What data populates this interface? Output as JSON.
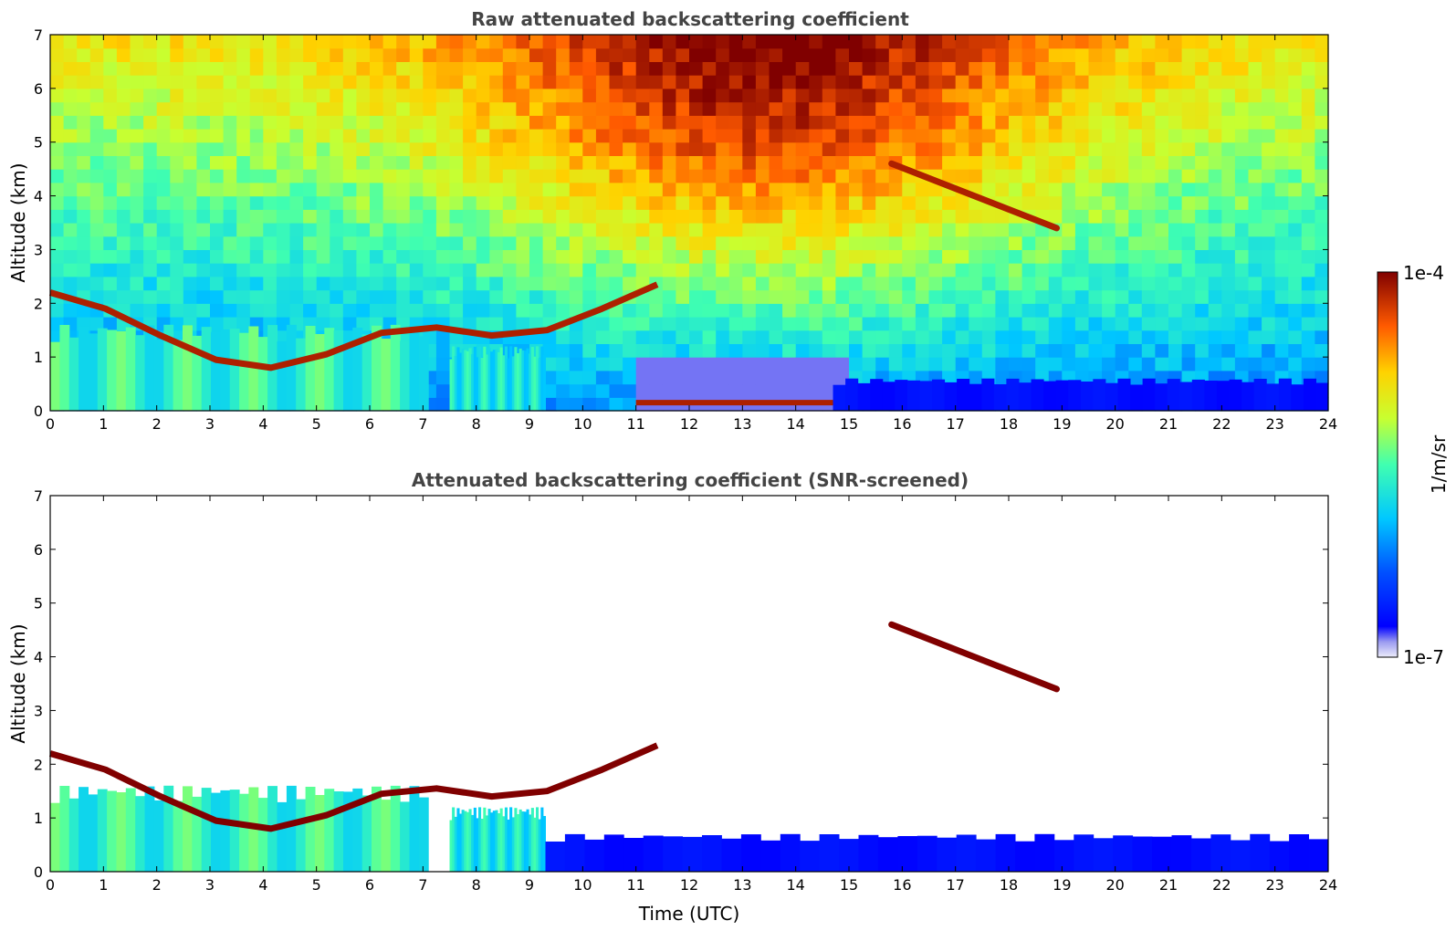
{
  "chart_data": [
    {
      "type": "heatmap",
      "title": "Raw attenuated backscattering coefficient",
      "xlabel": "",
      "ylabel": "Altitude (km)",
      "xlim": [
        0,
        24
      ],
      "ylim": [
        0,
        7
      ],
      "xticks": [
        "0",
        "1",
        "2",
        "3",
        "4",
        "5",
        "6",
        "7",
        "8",
        "9",
        "10",
        "11",
        "12",
        "13",
        "14",
        "15",
        "16",
        "17",
        "18",
        "19",
        "20",
        "21",
        "22",
        "23",
        "24"
      ],
      "yticks": [
        "0",
        "1",
        "2",
        "3",
        "4",
        "5",
        "6",
        "7"
      ],
      "background": "noise",
      "features": [
        {
          "label": "boundary layer aerosol",
          "x_start": 0,
          "x_end": 7.1,
          "top_km": 1.6,
          "level": 0.55
        },
        {
          "label": "boundary layer aerosol",
          "x_start": 7.5,
          "x_end": 9.3,
          "top_km": 1.2,
          "level": 0.5
        },
        {
          "label": "cloud layer (0-2.4 km)",
          "x_start": 0,
          "x_end": 11.4,
          "altitude_km": [
            2.2,
            1.9,
            1.4,
            0.95,
            0.8,
            1.05,
            1.45,
            1.55,
            1.4,
            1.5,
            1.9,
            2.35
          ],
          "level": 0.95
        },
        {
          "label": "low cloud",
          "x_start": 11,
          "x_end": 14.7,
          "altitude_km": 0.15,
          "level": 0.95
        },
        {
          "label": "elevated layer",
          "x_start": 15.8,
          "x_end": 18.9,
          "altitude_km_start": 4.6,
          "altitude_km_end": 3.4,
          "level": 0.95
        },
        {
          "label": "surface layer",
          "x_start": 14.7,
          "x_end": 24,
          "top_km": 0.6,
          "level": 0.12
        }
      ]
    },
    {
      "type": "heatmap",
      "title": "Attenuated backscattering coefficient (SNR-screened)",
      "xlabel": "Time (UTC)",
      "ylabel": "Altitude (km)",
      "xlim": [
        0,
        24
      ],
      "ylim": [
        0,
        7
      ],
      "xticks": [
        "0",
        "1",
        "2",
        "3",
        "4",
        "5",
        "6",
        "7",
        "8",
        "9",
        "10",
        "11",
        "12",
        "13",
        "14",
        "15",
        "16",
        "17",
        "18",
        "19",
        "20",
        "21",
        "22",
        "23",
        "24"
      ],
      "yticks": [
        "0",
        "1",
        "2",
        "3",
        "4",
        "5",
        "6",
        "7"
      ],
      "background": "screened",
      "features": [
        {
          "label": "boundary layer aerosol",
          "x_start": 0,
          "x_end": 7.1,
          "top_km": 1.6,
          "level": 0.55
        },
        {
          "label": "boundary layer aerosol",
          "x_start": 7.5,
          "x_end": 9.3,
          "top_km": 1.2,
          "level": 0.5
        },
        {
          "label": "cloud layer (0-2.4 km)",
          "x_start": 0,
          "x_end": 11.4,
          "altitude_km": [
            2.2,
            1.9,
            1.4,
            0.95,
            0.8,
            1.05,
            1.45,
            1.55,
            1.4,
            1.5,
            1.9,
            2.35
          ],
          "level": 1.0
        },
        {
          "label": "low cloud",
          "x_start": 11,
          "x_end": 14.7,
          "altitude_km": 0.15,
          "level": 1.0
        },
        {
          "label": "elevated layer",
          "x_start": 15.8,
          "x_end": 18.9,
          "altitude_km_start": 4.6,
          "altitude_km_end": 3.4,
          "level": 1.0
        },
        {
          "label": "surface layer",
          "x_start": 9.3,
          "x_end": 24,
          "top_km": 0.7,
          "level": 0.12
        }
      ]
    }
  ],
  "colorbar": {
    "label": "1/m/sr",
    "max_label": "1e-4",
    "min_label": "1e-7",
    "colormap": "jet",
    "scale": "log"
  }
}
